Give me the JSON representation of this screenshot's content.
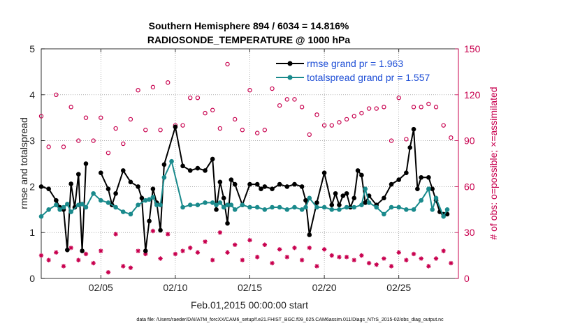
{
  "chart_data": {
    "type": "line",
    "title": "Southern Hemisphere 894 / 6034 = 14.816%",
    "subtitle": "RADIOSONDE_TEMPERATURE @ 1000 hPa",
    "xlabel": "Feb.01,2015 00:00:00 start",
    "ylabel": "rmse and totalspread",
    "ylabel_right": "# of obs: o=possible; ×=assimilated",
    "footnote": "data file: /Users/raeder/DAI/ATM_forcXX/CAM6_setup/f.e21.FHIST_BGC.f09_025.CAM6assim.011/Diags_NTrS_2015-02/obs_diag_output.nc",
    "xlim": [
      1,
      29
    ],
    "ylim": [
      0,
      5
    ],
    "ylim_right": [
      0,
      150
    ],
    "xticks": [
      5,
      10,
      15,
      20,
      25
    ],
    "xtick_labels": [
      "02/05",
      "02/10",
      "02/15",
      "02/20",
      "02/25"
    ],
    "yticks": [
      0,
      1,
      2,
      3,
      4,
      5
    ],
    "yticks_right": [
      0,
      30,
      60,
      90,
      120,
      150
    ],
    "grid": true,
    "legend_position": "top-right",
    "series": [
      {
        "name": "rmse grand pr = 1.963",
        "axis": "left",
        "color": "#000000",
        "x": [
          1.0,
          1.5,
          2.0,
          2.25,
          2.5,
          2.75,
          3.0,
          3.25,
          3.5,
          3.75,
          4.0,
          5.0,
          5.5,
          5.75,
          6.0,
          6.5,
          7.0,
          7.5,
          7.75,
          8.0,
          8.25,
          8.5,
          8.75,
          9.0,
          9.25,
          10.0,
          10.5,
          11.0,
          11.5,
          12.0,
          12.5,
          12.75,
          13.0,
          13.25,
          13.5,
          13.75,
          14.0,
          14.5,
          15.0,
          15.5,
          15.75,
          16.0,
          16.5,
          17.0,
          17.5,
          18.0,
          18.5,
          18.75,
          19.0,
          19.5,
          20.0,
          20.5,
          20.75,
          21.0,
          21.25,
          21.5,
          21.75,
          22.0,
          22.25,
          22.5,
          22.75,
          23.0,
          23.5,
          24.0,
          24.5,
          25.0,
          25.5,
          25.75,
          26.0,
          26.25,
          26.5,
          27.0,
          27.25,
          27.5,
          27.75,
          28.0,
          28.25
        ],
        "y": [
          2.0,
          1.95,
          1.7,
          1.55,
          1.5,
          0.62,
          2.06,
          1.55,
          2.27,
          0.6,
          2.5,
          2.3,
          1.95,
          1.6,
          1.85,
          2.35,
          2.1,
          2.0,
          1.75,
          0.6,
          1.25,
          1.95,
          1.65,
          1.05,
          2.48,
          3.3,
          2.45,
          2.35,
          2.4,
          2.35,
          2.6,
          1.5,
          2.1,
          1.75,
          1.2,
          2.15,
          2.05,
          1.6,
          2.05,
          2.05,
          1.95,
          2.0,
          1.95,
          2.05,
          2.0,
          2.05,
          2.0,
          1.7,
          0.95,
          1.65,
          2.3,
          1.6,
          1.85,
          1.6,
          1.8,
          1.85,
          1.55,
          1.75,
          2.35,
          2.25,
          1.65,
          1.8,
          1.6,
          1.75,
          2.05,
          2.15,
          2.3,
          2.85,
          3.25,
          1.95,
          2.2,
          2.2,
          1.95,
          1.7,
          1.45,
          1.4,
          1.4
        ]
      },
      {
        "name": "totalspread grand pr = 1.557",
        "axis": "left",
        "color": "#1a8a8c",
        "x": [
          1.0,
          1.5,
          2.0,
          2.25,
          2.5,
          2.75,
          3.0,
          3.5,
          3.75,
          4.0,
          4.5,
          5.0,
          5.5,
          6.0,
          6.5,
          7.0,
          7.5,
          8.0,
          8.25,
          8.5,
          8.75,
          9.0,
          9.25,
          9.75,
          10.5,
          11.0,
          11.5,
          12.0,
          12.5,
          12.75,
          13.0,
          13.25,
          13.5,
          13.75,
          14.0,
          14.5,
          15.0,
          15.5,
          16.0,
          16.5,
          17.0,
          17.5,
          18.0,
          18.5,
          18.75,
          19.0,
          19.5,
          20.0,
          20.5,
          21.0,
          21.5,
          22.0,
          22.5,
          22.75,
          23.0,
          23.5,
          24.0,
          24.5,
          25.0,
          25.5,
          26.0,
          26.5,
          27.0,
          27.25,
          27.5,
          28.0,
          28.25
        ],
        "y": [
          1.35,
          1.5,
          1.6,
          1.5,
          1.55,
          1.62,
          1.45,
          1.6,
          1.62,
          1.55,
          1.85,
          1.7,
          1.65,
          1.55,
          1.45,
          1.4,
          1.6,
          1.7,
          1.72,
          1.77,
          1.6,
          1.6,
          2.2,
          2.55,
          1.55,
          1.6,
          1.6,
          1.65,
          1.65,
          1.6,
          1.65,
          1.55,
          1.6,
          1.6,
          1.5,
          1.6,
          1.55,
          1.55,
          1.5,
          1.55,
          1.55,
          1.5,
          1.55,
          1.5,
          1.55,
          1.75,
          1.55,
          1.55,
          1.5,
          1.5,
          1.55,
          1.55,
          1.6,
          1.95,
          1.65,
          1.55,
          1.4,
          1.55,
          1.55,
          1.5,
          1.5,
          1.7,
          1.95,
          1.5,
          1.75,
          1.35,
          1.5
        ]
      },
      {
        "name": "possible",
        "axis": "right",
        "color": "#c8004e",
        "marker": "circle",
        "x": [
          1.0,
          1.5,
          2.0,
          2.5,
          3.0,
          3.5,
          4.0,
          4.5,
          5.0,
          5.5,
          6.0,
          6.5,
          7.0,
          7.5,
          8.0,
          8.5,
          9.0,
          9.5,
          10.0,
          10.5,
          11.0,
          11.5,
          12.0,
          12.5,
          13.0,
          13.5,
          14.0,
          14.5,
          15.0,
          15.5,
          16.0,
          16.5,
          17.0,
          17.5,
          18.0,
          18.5,
          19.0,
          19.5,
          20.0,
          20.5,
          21.0,
          21.5,
          22.0,
          22.5,
          23.0,
          23.5,
          24.0,
          24.5,
          25.0,
          25.5,
          26.0,
          26.5,
          27.0,
          27.5,
          28.0,
          28.5
        ],
        "y": [
          106,
          86,
          120,
          86,
          112,
          90,
          105,
          90,
          105,
          82,
          98,
          88,
          104,
          123,
          97,
          125,
          97,
          128,
          100,
          100,
          118,
          118,
          108,
          110,
          98,
          140,
          104,
          97,
          123,
          95,
          97,
          124,
          113,
          117,
          117,
          112,
          94,
          107,
          100,
          100,
          102,
          104,
          106,
          108,
          111,
          111,
          112,
          90,
          118,
          91,
          112,
          112,
          114,
          112,
          100,
          92
        ]
      },
      {
        "name": "assimilated",
        "axis": "right",
        "color": "#c8004e",
        "marker": "asterisk",
        "x": [
          1.0,
          1.5,
          2.0,
          2.5,
          3.0,
          3.5,
          4.0,
          4.5,
          5.0,
          5.5,
          6.0,
          6.5,
          7.0,
          7.5,
          8.0,
          8.5,
          9.0,
          9.5,
          10.0,
          10.5,
          11.0,
          11.5,
          12.0,
          12.5,
          13.0,
          13.5,
          14.0,
          14.5,
          15.0,
          15.5,
          16.0,
          16.5,
          17.0,
          17.5,
          18.0,
          18.5,
          19.0,
          19.5,
          20.0,
          20.5,
          21.0,
          21.5,
          22.0,
          22.5,
          23.0,
          23.5,
          24.0,
          24.5,
          25.0,
          25.5,
          26.0,
          26.5,
          27.0,
          27.5,
          28.0,
          28.5
        ],
        "y": [
          15,
          12,
          17,
          8,
          20,
          12,
          16,
          10,
          18,
          4,
          29,
          8,
          7,
          18,
          16,
          31,
          13,
          29,
          16,
          18,
          20,
          17,
          24,
          12,
          30,
          17,
          22,
          12,
          25,
          14,
          22,
          10,
          19,
          14,
          20,
          12,
          20,
          8,
          19,
          15,
          14,
          14,
          12,
          15,
          10,
          9,
          13,
          8,
          17,
          12,
          16,
          13,
          8,
          13,
          18,
          10
        ]
      }
    ]
  }
}
